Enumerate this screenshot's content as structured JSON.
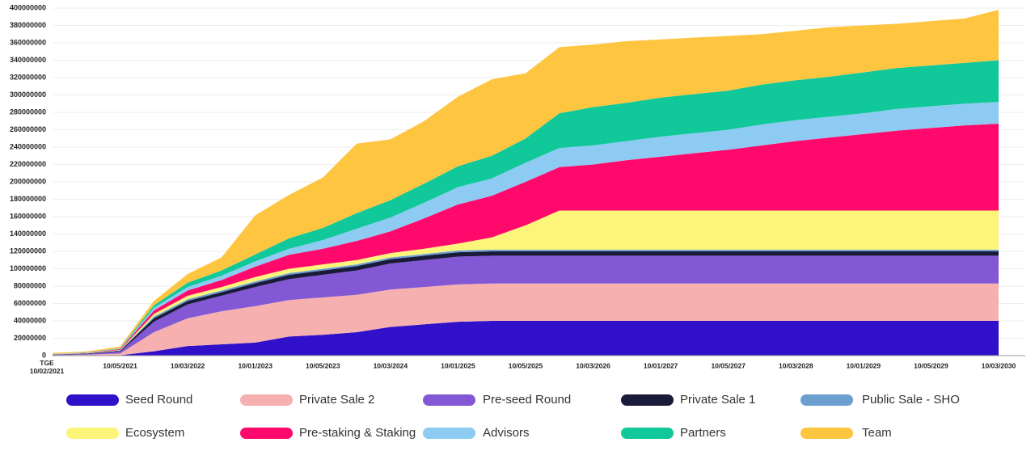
{
  "chart_data": {
    "type": "stacked_area",
    "categories": [
      "TGE\n10/02/2021",
      null,
      "10/05/2021",
      null,
      "10/03/2022",
      null,
      "10/01/2023",
      null,
      "10/05/2023",
      null,
      "10/03/2024",
      null,
      "10/01/2025",
      null,
      "10/05/2025",
      null,
      "10/03/2026",
      null,
      "10/01/2027",
      null,
      "10/05/2027",
      null,
      "10/03/2028",
      null,
      "10/01/2029",
      null,
      "10/05/2029",
      null,
      "10/03/2030"
    ],
    "ylim": [
      0,
      400000000
    ],
    "yticks": [
      0,
      20000000,
      40000000,
      60000000,
      80000000,
      100000000,
      120000000,
      140000000,
      160000000,
      180000000,
      200000000,
      220000000,
      240000000,
      260000000,
      280000000,
      300000000,
      320000000,
      340000000,
      360000000,
      380000000,
      400000000
    ],
    "grid": true,
    "series": [
      {
        "name": "Seed Round",
        "color": "#3010c8",
        "values": [
          0,
          0,
          500000,
          5000000,
          11000000,
          13000000,
          15000000,
          22000000,
          24000000,
          27000000,
          33000000,
          36000000,
          39000000,
          40000000,
          40000000,
          40000000,
          40000000,
          40000000,
          40000000,
          40000000,
          40000000,
          40000000,
          40000000,
          40000000,
          40000000,
          40000000,
          40000000,
          40000000,
          40000000
        ]
      },
      {
        "name": "Private Sale 2",
        "color": "#f7b0b0",
        "values": [
          500000,
          1000000,
          2000000,
          22000000,
          32000000,
          38000000,
          42000000,
          42000000,
          43000000,
          43000000,
          43000000,
          43000000,
          43000000,
          43000000,
          43000000,
          43000000,
          43000000,
          43000000,
          43000000,
          43000000,
          43000000,
          43000000,
          43000000,
          43000000,
          43000000,
          43000000,
          43000000,
          43000000,
          43000000
        ]
      },
      {
        "name": "Pre-seed Round",
        "color": "#8358d4",
        "values": [
          500000,
          1000000,
          2000000,
          12000000,
          16000000,
          18000000,
          22000000,
          24000000,
          26000000,
          28000000,
          30000000,
          31000000,
          32000000,
          32000000,
          32000000,
          32000000,
          32000000,
          32000000,
          32000000,
          32000000,
          32000000,
          32000000,
          32000000,
          32000000,
          32000000,
          32000000,
          32000000,
          32000000,
          32000000
        ]
      },
      {
        "name": "Private Sale 1",
        "color": "#1a1a3a",
        "values": [
          300000,
          500000,
          1000000,
          4000000,
          4000000,
          4000000,
          4500000,
          5000000,
          5000000,
          5000000,
          5000000,
          5000000,
          5000000,
          5000000,
          5000000,
          5000000,
          5000000,
          5000000,
          5000000,
          5000000,
          5000000,
          5000000,
          5000000,
          5000000,
          5000000,
          5000000,
          5000000,
          5000000,
          5000000
        ]
      },
      {
        "name": "Public Sale - SHO",
        "color": "#6a9fd0",
        "values": [
          200000,
          300000,
          500000,
          2000000,
          2000000,
          2000000,
          2000000,
          2000000,
          2000000,
          2000000,
          2000000,
          2000000,
          2000000,
          2000000,
          2000000,
          2000000,
          2000000,
          2000000,
          2000000,
          2000000,
          2000000,
          2000000,
          2000000,
          2000000,
          2000000,
          2000000,
          2000000,
          2000000,
          2000000
        ]
      },
      {
        "name": "Ecosystem",
        "color": "#fdf57a",
        "values": [
          200000,
          300000,
          500000,
          3000000,
          4000000,
          4000000,
          5000000,
          5000000,
          5000000,
          5000000,
          5000000,
          6000000,
          8000000,
          14000000,
          28000000,
          45000000,
          45000000,
          45000000,
          45000000,
          45000000,
          45000000,
          45000000,
          45000000,
          45000000,
          45000000,
          45000000,
          45000000,
          45000000,
          45000000
        ]
      },
      {
        "name": "Pre-staking & Staking",
        "color": "#ff0a6c",
        "values": [
          200000,
          300000,
          1000000,
          4000000,
          6000000,
          8000000,
          12000000,
          16000000,
          18000000,
          22000000,
          25000000,
          35000000,
          45000000,
          48000000,
          50000000,
          50000000,
          53000000,
          58000000,
          62000000,
          66000000,
          70000000,
          75000000,
          80000000,
          84000000,
          88000000,
          92000000,
          95000000,
          98000000,
          100000000
        ]
      },
      {
        "name": "Advisors",
        "color": "#8ecbf2",
        "values": [
          100000,
          200000,
          500000,
          3000000,
          4000000,
          5000000,
          6000000,
          7000000,
          10000000,
          14000000,
          16000000,
          18000000,
          20000000,
          20000000,
          22000000,
          22000000,
          22000000,
          22000000,
          23000000,
          23000000,
          23000000,
          24000000,
          24000000,
          24000000,
          24000000,
          25000000,
          25000000,
          25000000,
          25000000
        ]
      },
      {
        "name": "Partners",
        "color": "#10c89a",
        "values": [
          100000,
          200000,
          500000,
          3000000,
          5000000,
          6000000,
          8000000,
          12000000,
          14000000,
          18000000,
          20000000,
          22000000,
          24000000,
          26000000,
          28000000,
          40000000,
          44000000,
          44000000,
          45000000,
          45000000,
          45000000,
          46000000,
          46000000,
          46000000,
          47000000,
          47000000,
          47000000,
          47000000,
          48000000
        ]
      },
      {
        "name": "Team",
        "color": "#fec640",
        "values": [
          1000000,
          1000000,
          2000000,
          5000000,
          10000000,
          15000000,
          45000000,
          50000000,
          58000000,
          80000000,
          70000000,
          72000000,
          80000000,
          88000000,
          75000000,
          76000000,
          72000000,
          71000000,
          67000000,
          65000000,
          63000000,
          58000000,
          57000000,
          57000000,
          54000000,
          51000000,
          51000000,
          51000000,
          58000000
        ]
      }
    ]
  }
}
